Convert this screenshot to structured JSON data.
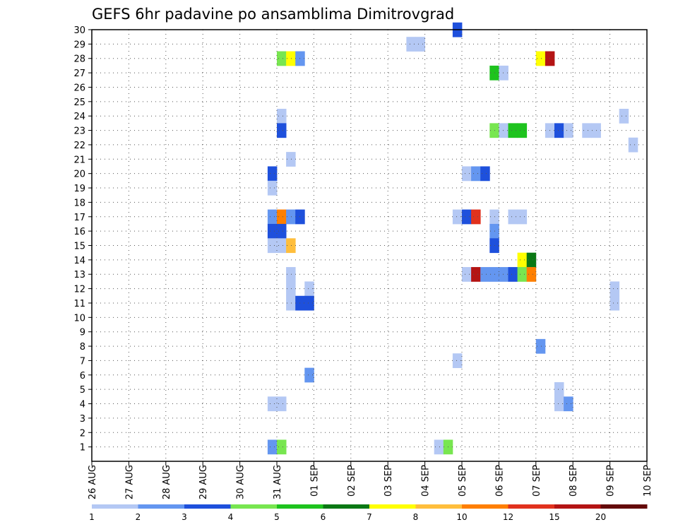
{
  "chart_data": {
    "type": "heatmap",
    "title": "GEFS 6hr padavine po ansamblima Dimitrovgrad",
    "x_ticks": [
      "26 AUG",
      "27 AUG",
      "28 AUG",
      "29 AUG",
      "30 AUG",
      "31 AUG",
      "01 SEP",
      "02 SEP",
      "03 SEP",
      "04 SEP",
      "05 SEP",
      "06 SEP",
      "07 SEP",
      "08 SEP",
      "09 SEP",
      "10 SEP"
    ],
    "y_ticks": [
      "1",
      "2",
      "3",
      "4",
      "5",
      "6",
      "7",
      "8",
      "9",
      "10",
      "11",
      "12",
      "13",
      "14",
      "15",
      "16",
      "17",
      "18",
      "19",
      "20",
      "21",
      "22",
      "23",
      "24",
      "25",
      "26",
      "27",
      "28",
      "29",
      "30"
    ],
    "x_range_days": [
      0,
      15
    ],
    "y_range_members": [
      0,
      30
    ],
    "grid": "dotted",
    "levels": [
      "1",
      "2",
      "3",
      "4",
      "5",
      "6",
      "7",
      "8",
      "10",
      "12",
      "15",
      "20"
    ],
    "level_colors": [
      "#b4c8f4",
      "#6496f0",
      "#1e50dc",
      "#78e650",
      "#1ec31e",
      "#0a7814",
      "#ffff00",
      "#ffbe3c",
      "#ff7f00",
      "#e1321e",
      "#b41414",
      "#640a0a"
    ],
    "cells": [
      {
        "day": 9.75,
        "member": 30,
        "level": 2
      },
      {
        "day": 8.5,
        "member": 29,
        "level": 0
      },
      {
        "day": 8.75,
        "member": 29,
        "level": 0
      },
      {
        "day": 5.0,
        "member": 28,
        "level": 3
      },
      {
        "day": 5.25,
        "member": 28,
        "level": 6
      },
      {
        "day": 5.5,
        "member": 28,
        "level": 1
      },
      {
        "day": 12.0,
        "member": 28,
        "level": 6
      },
      {
        "day": 12.25,
        "member": 28,
        "level": 10
      },
      {
        "day": 10.75,
        "member": 27,
        "level": 4
      },
      {
        "day": 11.0,
        "member": 27,
        "level": 0
      },
      {
        "day": 5.0,
        "member": 24,
        "level": 0
      },
      {
        "day": 14.25,
        "member": 24,
        "level": 0
      },
      {
        "day": 5.0,
        "member": 23,
        "level": 2
      },
      {
        "day": 10.75,
        "member": 23,
        "level": 3
      },
      {
        "day": 11.0,
        "member": 23,
        "level": 0
      },
      {
        "day": 11.25,
        "member": 23,
        "level": 4
      },
      {
        "day": 11.5,
        "member": 23,
        "level": 4
      },
      {
        "day": 12.25,
        "member": 23,
        "level": 0
      },
      {
        "day": 12.5,
        "member": 23,
        "level": 2
      },
      {
        "day": 12.75,
        "member": 23,
        "level": 0
      },
      {
        "day": 13.25,
        "member": 23,
        "level": 0
      },
      {
        "day": 13.5,
        "member": 23,
        "level": 0
      },
      {
        "day": 14.5,
        "member": 22,
        "level": 0
      },
      {
        "day": 5.25,
        "member": 21,
        "level": 0
      },
      {
        "day": 4.75,
        "member": 20,
        "level": 2
      },
      {
        "day": 10.0,
        "member": 20,
        "level": 0
      },
      {
        "day": 10.25,
        "member": 20,
        "level": 1
      },
      {
        "day": 10.5,
        "member": 20,
        "level": 2
      },
      {
        "day": 4.75,
        "member": 19,
        "level": 0
      },
      {
        "day": 4.75,
        "member": 17,
        "level": 1
      },
      {
        "day": 5.0,
        "member": 17,
        "level": 8
      },
      {
        "day": 5.25,
        "member": 17,
        "level": 1
      },
      {
        "day": 5.5,
        "member": 17,
        "level": 2
      },
      {
        "day": 9.75,
        "member": 17,
        "level": 0
      },
      {
        "day": 10.0,
        "member": 17,
        "level": 2
      },
      {
        "day": 10.25,
        "member": 17,
        "level": 9
      },
      {
        "day": 10.75,
        "member": 17,
        "level": 0
      },
      {
        "day": 11.25,
        "member": 17,
        "level": 0
      },
      {
        "day": 11.5,
        "member": 17,
        "level": 0
      },
      {
        "day": 4.75,
        "member": 16,
        "level": 2
      },
      {
        "day": 5.0,
        "member": 16,
        "level": 2
      },
      {
        "day": 10.75,
        "member": 16,
        "level": 1
      },
      {
        "day": 4.75,
        "member": 15,
        "level": 0
      },
      {
        "day": 5.0,
        "member": 15,
        "level": 0
      },
      {
        "day": 5.25,
        "member": 15,
        "level": 7
      },
      {
        "day": 10.75,
        "member": 15,
        "level": 2
      },
      {
        "day": 11.5,
        "member": 14,
        "level": 6
      },
      {
        "day": 11.75,
        "member": 14,
        "level": 5
      },
      {
        "day": 5.25,
        "member": 13,
        "level": 0
      },
      {
        "day": 10.0,
        "member": 13,
        "level": 0
      },
      {
        "day": 10.25,
        "member": 13,
        "level": 10
      },
      {
        "day": 10.5,
        "member": 13,
        "level": 1
      },
      {
        "day": 10.75,
        "member": 13,
        "level": 1
      },
      {
        "day": 11.0,
        "member": 13,
        "level": 1
      },
      {
        "day": 11.25,
        "member": 13,
        "level": 2
      },
      {
        "day": 11.5,
        "member": 13,
        "level": 3
      },
      {
        "day": 11.75,
        "member": 13,
        "level": 8
      },
      {
        "day": 5.25,
        "member": 12,
        "level": 0
      },
      {
        "day": 5.75,
        "member": 12,
        "level": 0
      },
      {
        "day": 14.0,
        "member": 12,
        "level": 0
      },
      {
        "day": 5.25,
        "member": 11,
        "level": 0
      },
      {
        "day": 5.5,
        "member": 11,
        "level": 2
      },
      {
        "day": 5.75,
        "member": 11,
        "level": 2
      },
      {
        "day": 14.0,
        "member": 11,
        "level": 0
      },
      {
        "day": 12.0,
        "member": 8,
        "level": 1
      },
      {
        "day": 9.75,
        "member": 7,
        "level": 0
      },
      {
        "day": 5.75,
        "member": 6,
        "level": 1
      },
      {
        "day": 12.5,
        "member": 5,
        "level": 0
      },
      {
        "day": 4.75,
        "member": 4,
        "level": 0
      },
      {
        "day": 5.0,
        "member": 4,
        "level": 0
      },
      {
        "day": 12.5,
        "member": 4,
        "level": 0
      },
      {
        "day": 12.75,
        "member": 4,
        "level": 1
      },
      {
        "day": 4.75,
        "member": 1,
        "level": 1
      },
      {
        "day": 5.0,
        "member": 1,
        "level": 3
      },
      {
        "day": 9.25,
        "member": 1,
        "level": 0
      },
      {
        "day": 9.5,
        "member": 1,
        "level": 3
      }
    ]
  }
}
